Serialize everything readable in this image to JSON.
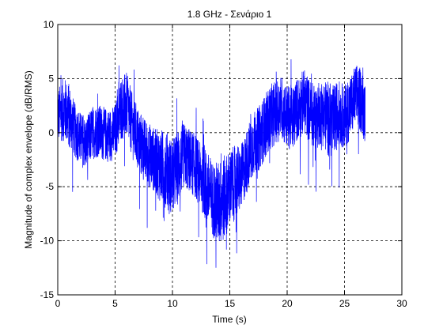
{
  "chart_data": {
    "type": "line",
    "title": "1.8 GHz - Σενάριο 1",
    "xlabel": "Time (s)",
    "ylabel": "Magnitude of complex envelope (dB/RMS)",
    "xlim": [
      0,
      30
    ],
    "ylim": [
      -15,
      10
    ],
    "xticks": [
      "0",
      "5",
      "10",
      "15",
      "20",
      "25",
      "30"
    ],
    "yticks": [
      "10",
      "5",
      "0",
      "-5",
      "-10",
      "-15"
    ],
    "grid": true,
    "line_color": "#0000ff",
    "series": [
      {
        "x": [
          0,
          0.5,
          1,
          1.5,
          2,
          2.5,
          3,
          3.5,
          4,
          4.5,
          5,
          5.5,
          6,
          6.5,
          7,
          7.5,
          8,
          8.5,
          9,
          9.5,
          10,
          10.5,
          11,
          11.5,
          12,
          12.5,
          13,
          13.5,
          14,
          14.5,
          15,
          15.5,
          16,
          16.5,
          17,
          17.5,
          18,
          18.5,
          19,
          19.5,
          20,
          20.5,
          21,
          21.5,
          22,
          22.5,
          23,
          23.5,
          24,
          24.5,
          25,
          25.5,
          26,
          26.5,
          26.8
        ],
        "y": [
          1.5,
          2.2,
          1.6,
          0.2,
          -0.6,
          -1.1,
          0.0,
          0.2,
          -0.1,
          -0.3,
          0.1,
          2.2,
          2.6,
          0.6,
          -0.6,
          -1.6,
          -2.1,
          -2.6,
          -3.1,
          -3.6,
          -4.1,
          -3.1,
          -2.1,
          -2.6,
          -3.1,
          -4.1,
          -5.1,
          -6.1,
          -6.6,
          -6.1,
          -5.1,
          -4.6,
          -4.1,
          -2.6,
          -1.1,
          -0.6,
          0.4,
          1.4,
          1.9,
          2.4,
          1.4,
          1.4,
          2.4,
          2.9,
          1.9,
          1.4,
          1.9,
          1.4,
          0.9,
          1.9,
          1.4,
          2.4,
          3.4,
          2.9,
          1.9
        ],
        "amplitude": [
          2.5,
          3,
          3,
          2.5,
          2.5,
          2.5,
          2.5,
          2.5,
          2.5,
          2.5,
          2.5,
          3,
          3,
          3,
          3,
          3,
          3,
          3,
          3.5,
          3.5,
          3.5,
          3.5,
          3,
          3,
          3,
          3,
          3.5,
          3.5,
          4,
          4,
          3.5,
          3.5,
          3,
          3,
          3,
          3,
          3,
          3,
          3,
          3,
          3,
          3,
          3,
          3,
          3,
          3,
          3,
          3.5,
          3.5,
          3,
          3,
          3,
          3,
          3,
          3
        ]
      }
    ]
  }
}
